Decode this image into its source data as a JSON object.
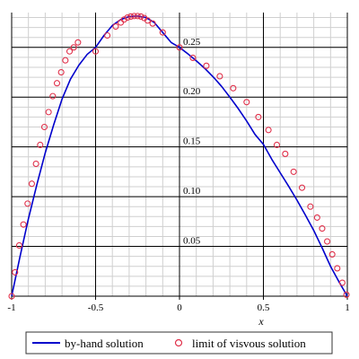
{
  "chart_data": {
    "type": "line",
    "xlabel": "x",
    "ylabel": "",
    "xlim": [
      -1,
      1
    ],
    "ylim": [
      0,
      0.285
    ],
    "grid": true,
    "legend_position": "bottom",
    "x_ticks": [
      -1,
      -0.5,
      0,
      0.5,
      1
    ],
    "x_tick_labels": [
      "-1",
      "-0.5",
      "0",
      "0.5",
      "1"
    ],
    "y_ticks": [
      0.05,
      0.1,
      0.15,
      0.2,
      0.25
    ],
    "y_tick_labels": [
      "0.05",
      "0.10",
      "0.15",
      "0.20",
      "0.25"
    ],
    "series": [
      {
        "name": "by-hand solution",
        "style": "line",
        "color": "#0000cc",
        "x": [
          -1,
          -0.95,
          -0.9,
          -0.85,
          -0.8,
          -0.75,
          -0.7,
          -0.65,
          -0.6,
          -0.55,
          -0.5,
          -0.45,
          -0.4,
          -0.35,
          -0.3,
          -0.25,
          -0.2,
          -0.15,
          -0.1,
          -0.05,
          0,
          0.05,
          0.1,
          0.15,
          0.2,
          0.25,
          0.3,
          0.35,
          0.4,
          0.45,
          0.5,
          0.55,
          0.6,
          0.65,
          0.7,
          0.75,
          0.8,
          0.85,
          0.9,
          0.95,
          1
        ],
        "y": [
          0.0,
          0.04,
          0.078,
          0.112,
          0.144,
          0.172,
          0.198,
          0.218,
          0.232,
          0.243,
          0.25,
          0.262,
          0.272,
          0.278,
          0.281,
          0.2815,
          0.28,
          0.275,
          0.265,
          0.255,
          0.25,
          0.2435,
          0.2365,
          0.229,
          0.2205,
          0.211,
          0.2,
          0.1885,
          0.176,
          0.1625,
          0.1525,
          0.1375,
          0.124,
          0.1105,
          0.0965,
          0.0815,
          0.066,
          0.0485,
          0.03,
          0.0145,
          0.0
        ]
      },
      {
        "name": "limit of visvous solution",
        "style": "marker",
        "color": "#e0304a",
        "x": [
          -1,
          -0.98,
          -0.955,
          -0.93,
          -0.905,
          -0.88,
          -0.855,
          -0.83,
          -0.805,
          -0.78,
          -0.755,
          -0.73,
          -0.705,
          -0.68,
          -0.655,
          -0.63,
          -0.605,
          -0.5,
          -0.43,
          -0.38,
          -0.35,
          -0.33,
          -0.31,
          -0.29,
          -0.27,
          -0.25,
          -0.23,
          -0.21,
          -0.19,
          -0.16,
          -0.1,
          0,
          0.08,
          0.16,
          0.24,
          0.32,
          0.4,
          0.47,
          0.53,
          0.58,
          0.63,
          0.68,
          0.73,
          0.78,
          0.82,
          0.85,
          0.88,
          0.91,
          0.94,
          0.97,
          0.995
        ],
        "y": [
          0.0,
          0.024,
          0.051,
          0.072,
          0.093,
          0.113,
          0.133,
          0.152,
          0.17,
          0.185,
          0.201,
          0.214,
          0.225,
          0.237,
          0.246,
          0.25,
          0.255,
          0.246,
          0.262,
          0.271,
          0.275,
          0.278,
          0.28,
          0.281,
          0.2815,
          0.2815,
          0.281,
          0.2795,
          0.277,
          0.274,
          0.265,
          0.25,
          0.2395,
          0.2315,
          0.221,
          0.209,
          0.195,
          0.18,
          0.167,
          0.152,
          0.143,
          0.125,
          0.109,
          0.09,
          0.079,
          0.068,
          0.055,
          0.042,
          0.028,
          0.0135,
          0.0015
        ]
      }
    ]
  }
}
